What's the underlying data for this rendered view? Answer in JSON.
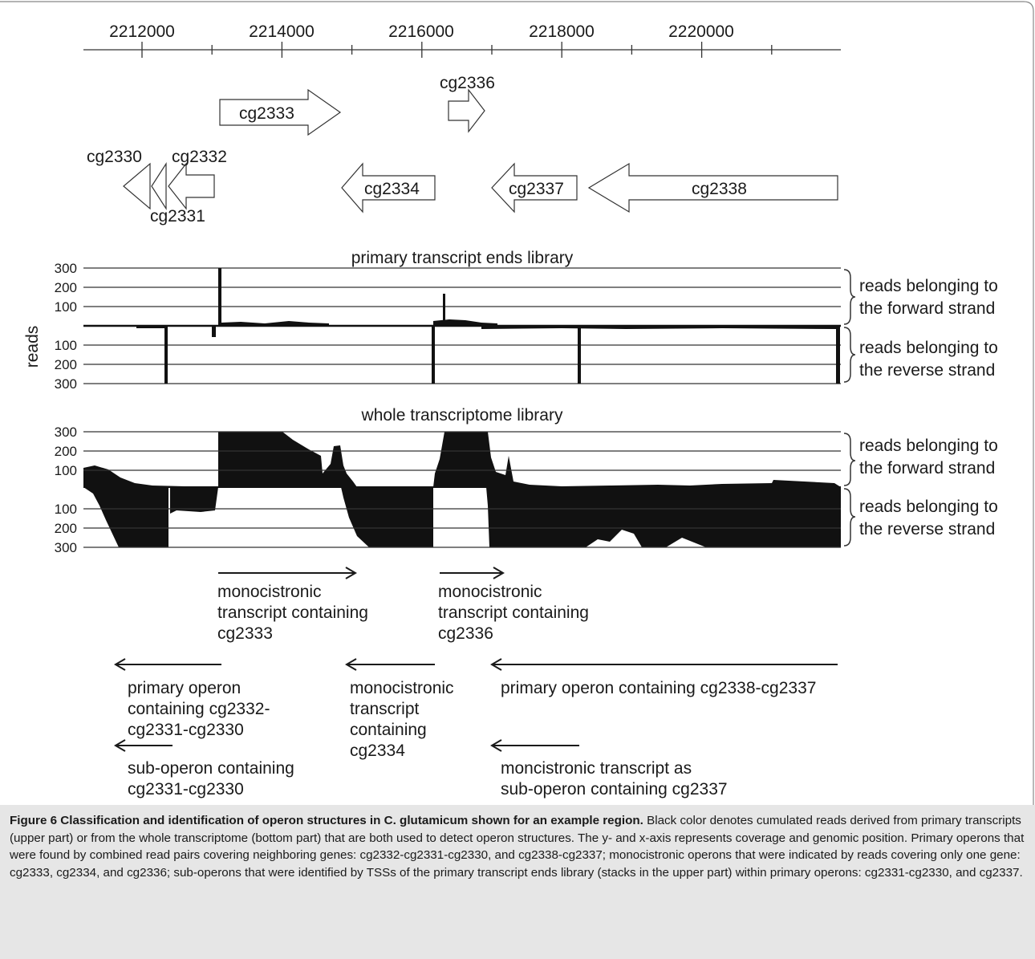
{
  "figure": {
    "axis_ticks": [
      "2212000",
      "2214000",
      "2216000",
      "2218000",
      "2220000"
    ],
    "genes_forward": [
      "cg2333",
      "cg2336"
    ],
    "genes_reverse": [
      "cg2330",
      "cg2332",
      "cg2331",
      "cg2334",
      "cg2337",
      "cg2338"
    ],
    "y_axis_label": "reads",
    "panels": [
      {
        "title": "primary transcript ends library",
        "ticks_forward": [
          "300",
          "200",
          "100"
        ],
        "ticks_reverse": [
          "100",
          "200",
          "300"
        ]
      },
      {
        "title": "whole transcriptome library",
        "ticks_forward": [
          "300",
          "200",
          "100"
        ],
        "ticks_reverse": [
          "100",
          "200",
          "300"
        ]
      }
    ],
    "strand_labels": {
      "forward": [
        "reads belonging to",
        "the forward strand"
      ],
      "reverse": [
        "reads belonging to",
        "the reverse strand"
      ]
    },
    "transcripts": [
      {
        "lines": [
          "monocistronic",
          "transcript containing",
          "cg2333"
        ],
        "direction": "forward"
      },
      {
        "lines": [
          "monocistronic",
          "transcript containing",
          "cg2336"
        ],
        "direction": "forward"
      },
      {
        "lines": [
          "primary operon",
          "containing cg2332-",
          "cg2331-cg2330"
        ],
        "direction": "reverse"
      },
      {
        "lines": [
          "monocistronic",
          "transcript",
          "containing",
          "cg2334"
        ],
        "direction": "reverse"
      },
      {
        "lines": [
          "primary operon containing cg2338-cg2337"
        ],
        "direction": "reverse"
      },
      {
        "lines": [
          "sub-operon containing",
          "cg2331-cg2330"
        ],
        "direction": "reverse"
      },
      {
        "lines": [
          "moncistronic transcript as",
          "sub-operon containing cg2337"
        ],
        "direction": "reverse"
      }
    ]
  },
  "caption": {
    "title": "Figure 6 Classification and identification of operon structures in C. glutamicum shown for an example region.",
    "body": " Black color denotes cumulated reads derived from primary transcripts (upper part) or from the whole transcriptome (bottom part) that are both used to detect operon structures. The y- and x-axis represents coverage and genomic position. Primary operons that were found by combined read pairs covering neighboring genes: cg2332-cg2331-cg2330, and cg2338-cg2337; monocistronic operons that were indicated by reads covering only one gene: cg2333, cg2334, and cg2336; sub-operons that were identified by TSSs of the primary transcript ends library (stacks in the upper part) within primary operons: cg2331-cg2330, and cg2337."
  }
}
